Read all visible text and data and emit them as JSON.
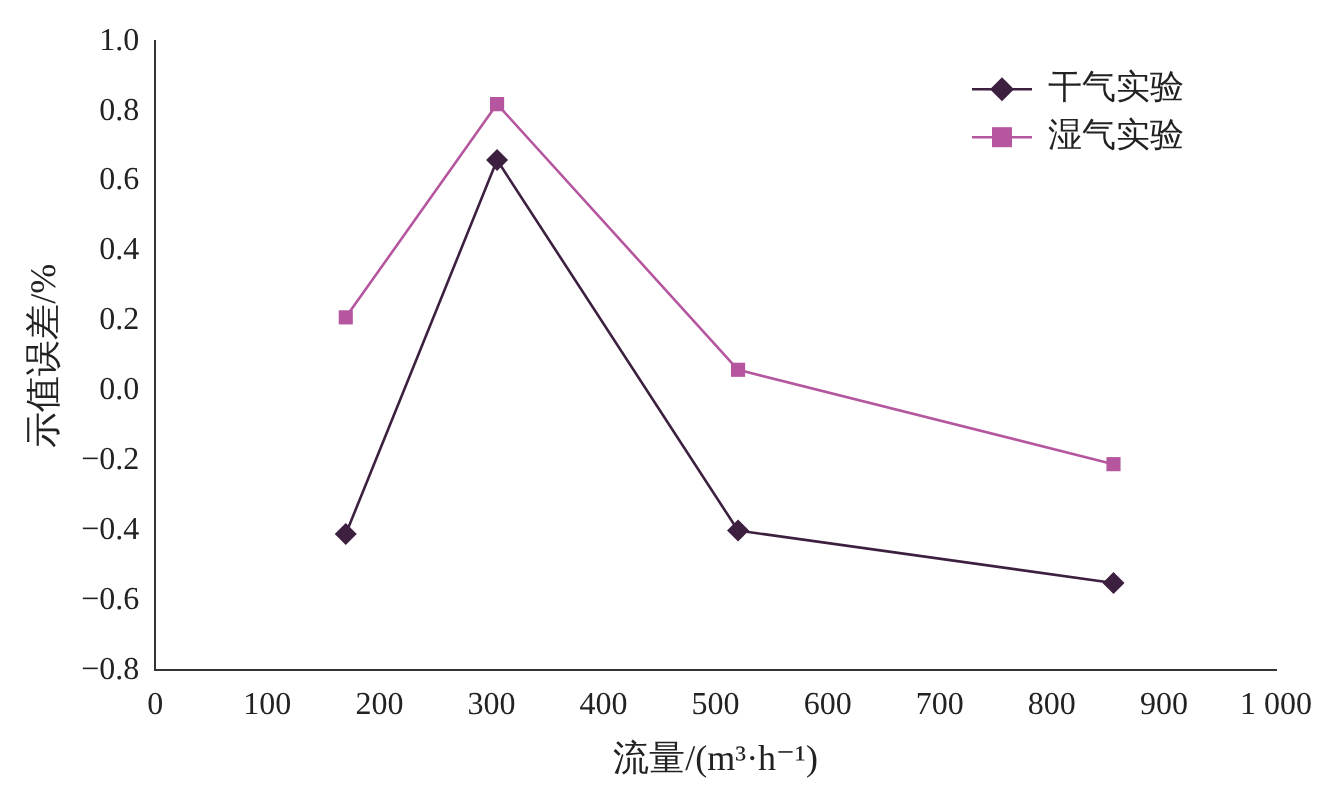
{
  "chart_data": {
    "type": "line",
    "xlabel": "流量/(m³·h⁻¹)",
    "ylabel": "示值误差/%",
    "x": [
      170,
      305,
      520,
      855
    ],
    "series": [
      {
        "name": "干气实验",
        "color": "#3d1f3f",
        "marker": "diamond",
        "values": [
          -0.41,
          0.66,
          -0.4,
          -0.55
        ]
      },
      {
        "name": "湿气实验",
        "color": "#b5569f",
        "marker": "square",
        "values": [
          0.21,
          0.82,
          0.06,
          -0.21
        ]
      }
    ],
    "xlim": [
      0,
      1000
    ],
    "xticks": [
      0,
      100,
      200,
      300,
      400,
      500,
      600,
      700,
      800,
      900,
      {
        "value": 1000,
        "label": "1 000"
      }
    ],
    "ylim": [
      -0.8,
      1.0
    ],
    "yticks": [
      {
        "value": -0.8,
        "label": "−0.8"
      },
      {
        "value": -0.6,
        "label": "−0.6"
      },
      {
        "value": -0.4,
        "label": "−0.4"
      },
      {
        "value": -0.2,
        "label": "−0.2"
      },
      {
        "value": 0,
        "label": "0.0"
      },
      {
        "value": 0.2,
        "label": "0.2"
      },
      {
        "value": 0.4,
        "label": "0.4"
      },
      {
        "value": 0.6,
        "label": "0.6"
      },
      {
        "value": 0.8,
        "label": "0.8"
      },
      {
        "value": 1.0,
        "label": "1.0"
      }
    ],
    "grid": false,
    "legend": "top right",
    "line_style": "solid"
  }
}
